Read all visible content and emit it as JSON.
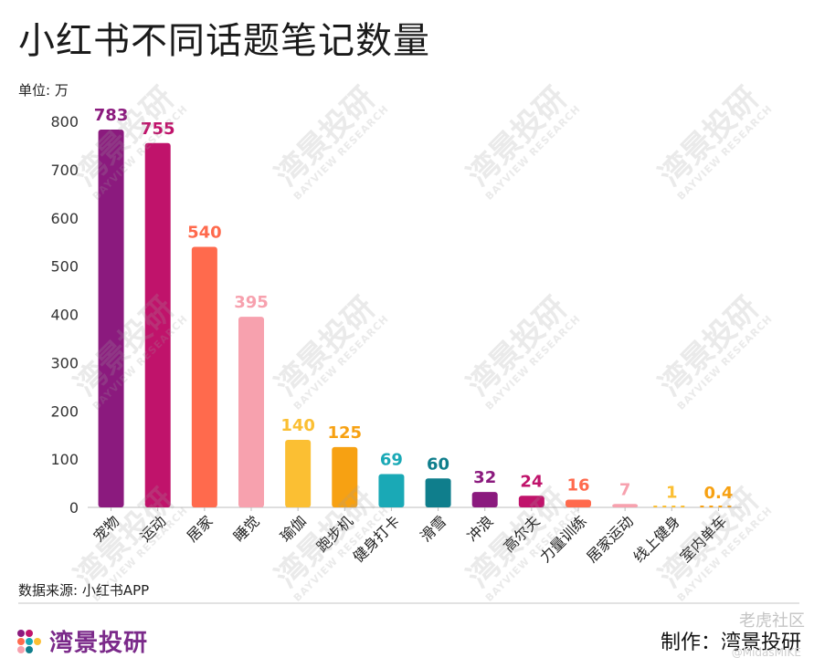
{
  "title": "小红书不同话题笔记数量",
  "unit_label": "单位: 万",
  "source": "数据来源: 小红书APP",
  "brand_name": "湾景投研",
  "credit": "制作：湾景投研",
  "corner_watermark": "老虎社区",
  "corner_handle": "@MidasMIKE",
  "background_watermark": {
    "cn": "湾景投研",
    "en": "BAYVIEW RESEARCH"
  },
  "chart_data": {
    "type": "bar",
    "title": "小红书不同话题笔记数量",
    "ylabel": "单位: 万",
    "xlabel": "",
    "ylim": [
      0,
      800
    ],
    "yticks": [
      0,
      100,
      200,
      300,
      400,
      500,
      600,
      700,
      800
    ],
    "grid": false,
    "categories": [
      "宠物",
      "运动",
      "居家",
      "睡觉",
      "瑜伽",
      "跑步机",
      "健身打卡",
      "滑雪",
      "冲浪",
      "高尔夫",
      "力量训练",
      "居家运动",
      "线上健身",
      "室内单车"
    ],
    "values": [
      783,
      755,
      540,
      395,
      140,
      125,
      69,
      60,
      32,
      24,
      16,
      7,
      1,
      0.4
    ],
    "value_labels": [
      "783",
      "755",
      "540",
      "395",
      "140",
      "125",
      "69",
      "60",
      "32",
      "24",
      "16",
      "7",
      "1",
      "0.4"
    ],
    "colors": [
      "#8b1a7e",
      "#c0136b",
      "#ff6a4d",
      "#f7a1ae",
      "#fbbf33",
      "#f7a112",
      "#1aa9b6",
      "#0f7e8c",
      "#8b1a7e",
      "#c0136b",
      "#ff6a4d",
      "#f7a1ae",
      "#fbbf33",
      "#f7a112"
    ]
  }
}
